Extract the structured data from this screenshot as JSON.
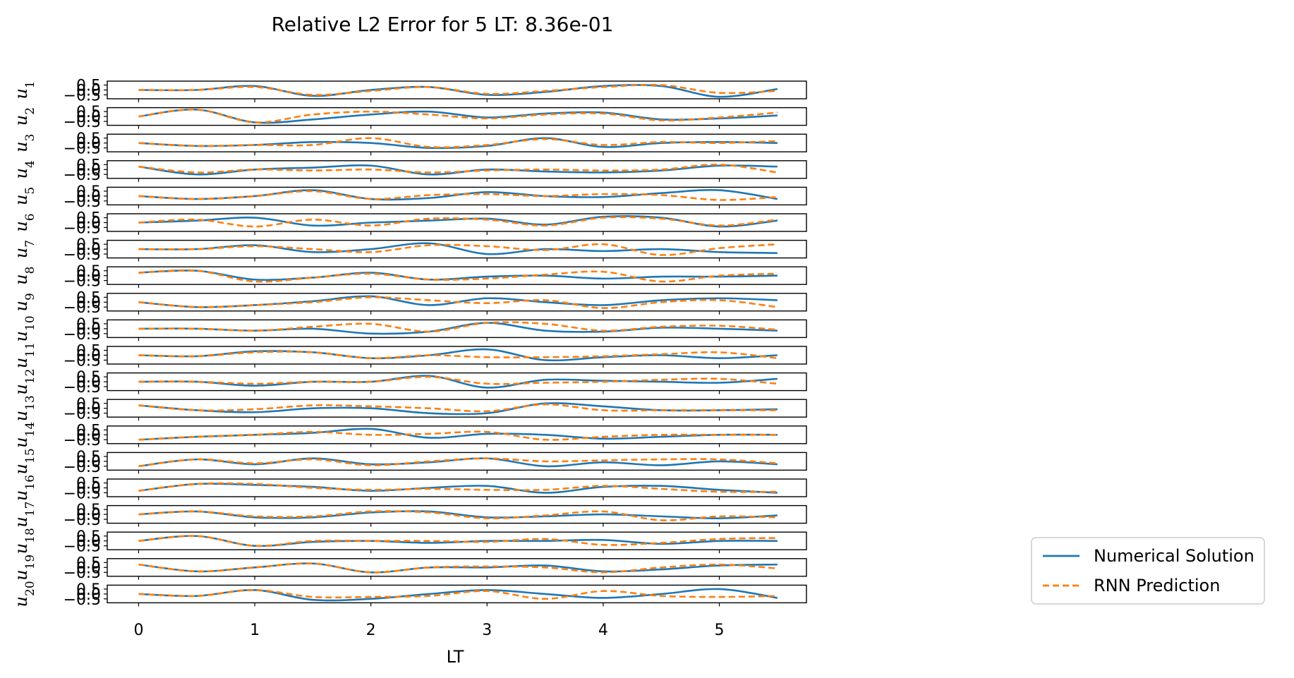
{
  "chart_data": {
    "type": "line",
    "title": "Relative L2 Error for 5 LT: 8.36e-01",
    "xlabel": "LT",
    "x_ticks": [
      "0",
      "1",
      "2",
      "3",
      "4",
      "5"
    ],
    "xlim": [
      -0.27,
      5.75
    ],
    "y_tick_labels": [
      "0.5",
      "0.0",
      "−0.5"
    ],
    "ylim": [
      -0.9,
      0.9
    ],
    "rows": [
      {
        "label": "u_1",
        "sub": "1"
      },
      {
        "label": "u_2",
        "sub": "2"
      },
      {
        "label": "u_3",
        "sub": "3"
      },
      {
        "label": "u_4",
        "sub": "4"
      },
      {
        "label": "u_5",
        "sub": "5"
      },
      {
        "label": "u_6",
        "sub": "6"
      },
      {
        "label": "u_7",
        "sub": "7"
      },
      {
        "label": "u_8",
        "sub": "8"
      },
      {
        "label": "u_9",
        "sub": "9"
      },
      {
        "label": "u_10",
        "sub": "10"
      },
      {
        "label": "u_11",
        "sub": "11"
      },
      {
        "label": "u_12",
        "sub": "12"
      },
      {
        "label": "u_13",
        "sub": "13"
      },
      {
        "label": "u_14",
        "sub": "14"
      },
      {
        "label": "u_15",
        "sub": "15"
      },
      {
        "label": "u_16",
        "sub": "16"
      },
      {
        "label": "u_17",
        "sub": "17"
      },
      {
        "label": "u_18",
        "sub": "18"
      },
      {
        "label": "u_19",
        "sub": "19"
      },
      {
        "label": "u_20",
        "sub": "20"
      }
    ],
    "x": [
      0,
      0.5,
      1,
      1.5,
      2,
      2.5,
      3,
      3.5,
      4,
      4.5,
      5,
      5.5
    ],
    "series": [
      {
        "name": "Numerical Solution",
        "color": "#1f77b4",
        "dash": "solid",
        "values": [
          [
            0.0,
            0.0,
            0.4,
            -0.6,
            0.0,
            0.3,
            -0.5,
            -0.2,
            0.4,
            0.4,
            -0.7,
            0.1
          ],
          [
            0.0,
            0.7,
            -0.6,
            -0.3,
            0.2,
            0.5,
            -0.1,
            0.3,
            0.4,
            -0.3,
            -0.2,
            0.1
          ],
          [
            0.0,
            -0.3,
            -0.2,
            0.1,
            0.0,
            -0.5,
            -0.3,
            0.5,
            -0.4,
            0.0,
            0.1,
            0.0
          ],
          [
            0.3,
            -0.5,
            0.0,
            0.2,
            0.4,
            -0.5,
            0.0,
            -0.2,
            -0.3,
            -0.1,
            0.4,
            0.3
          ],
          [
            0.0,
            -0.3,
            0.0,
            0.6,
            -0.3,
            -0.2,
            0.4,
            0.0,
            -0.1,
            0.3,
            0.6,
            -0.3
          ],
          [
            0.0,
            0.2,
            0.5,
            -0.3,
            0.0,
            0.2,
            0.4,
            -0.2,
            0.6,
            0.5,
            -0.4,
            0.2
          ],
          [
            0.0,
            0.0,
            0.4,
            -0.3,
            0.0,
            0.6,
            -0.5,
            0.0,
            -0.2,
            0.0,
            -0.3,
            -0.4
          ],
          [
            0.3,
            0.5,
            -0.4,
            -0.2,
            0.3,
            -0.4,
            -0.1,
            0.0,
            -0.3,
            -0.1,
            -0.1,
            0.0
          ],
          [
            0.0,
            -0.5,
            -0.3,
            0.1,
            0.6,
            -0.3,
            0.4,
            0.0,
            -0.3,
            0.2,
            0.4,
            0.2
          ],
          [
            0.0,
            0.0,
            -0.2,
            0.0,
            -0.5,
            -0.3,
            0.6,
            -0.2,
            -0.3,
            0.1,
            0.0,
            -0.2
          ],
          [
            0.0,
            -0.1,
            0.4,
            0.3,
            -0.3,
            0.0,
            0.6,
            -0.5,
            -0.2,
            0.0,
            -0.3,
            0.0
          ],
          [
            0.0,
            0.0,
            -0.4,
            0.0,
            0.0,
            0.6,
            -0.6,
            0.2,
            0.1,
            0.0,
            -0.1,
            0.3
          ],
          [
            0.3,
            -0.2,
            -0.4,
            0.0,
            0.0,
            -0.5,
            -0.5,
            0.5,
            0.2,
            -0.2,
            -0.2,
            -0.1
          ],
          [
            -0.5,
            -0.2,
            0.0,
            0.2,
            0.6,
            -0.3,
            0.1,
            0.0,
            -0.4,
            -0.2,
            0.0,
            0.0
          ],
          [
            -0.5,
            0.2,
            -0.3,
            0.3,
            -0.3,
            -0.1,
            0.3,
            -0.5,
            -0.1,
            -0.4,
            0.0,
            -0.3
          ],
          [
            -0.3,
            0.4,
            0.3,
            0.1,
            -0.3,
            0.0,
            0.2,
            -0.5,
            0.1,
            0.2,
            -0.2,
            -0.5
          ],
          [
            0.0,
            0.3,
            -0.3,
            -0.3,
            0.2,
            0.3,
            -0.3,
            -0.2,
            0.0,
            -0.2,
            -0.4,
            -0.1
          ],
          [
            0.0,
            0.5,
            -0.5,
            -0.1,
            0.0,
            -0.2,
            0.0,
            0.0,
            0.1,
            -0.3,
            0.0,
            0.0
          ],
          [
            0.3,
            -0.4,
            0.0,
            0.4,
            -0.5,
            0.0,
            0.0,
            0.2,
            -0.4,
            -0.2,
            0.2,
            0.3
          ],
          [
            0.0,
            -0.2,
            0.4,
            -0.6,
            -0.5,
            0.0,
            0.4,
            0.0,
            -0.4,
            0.0,
            0.5,
            -0.4
          ]
        ]
      },
      {
        "name": "RNN Prediction",
        "color": "#ff7f0e",
        "dash": "dashed",
        "values": [
          [
            0.0,
            0.0,
            0.3,
            -0.5,
            -0.1,
            0.3,
            -0.4,
            -0.1,
            0.3,
            0.5,
            -0.3,
            -0.1
          ],
          [
            0.0,
            0.7,
            -0.6,
            0.2,
            0.5,
            0.2,
            -0.2,
            0.2,
            0.3,
            -0.4,
            -0.1,
            0.4
          ],
          [
            0.0,
            -0.3,
            -0.2,
            -0.2,
            0.5,
            -0.4,
            -0.2,
            0.4,
            -0.2,
            0.1,
            0.0,
            0.2
          ],
          [
            0.3,
            -0.3,
            0.0,
            -0.1,
            0.0,
            -0.3,
            -0.1,
            0.0,
            -0.1,
            0.0,
            0.5,
            -0.3
          ],
          [
            0.0,
            -0.3,
            0.0,
            0.5,
            -0.3,
            0.1,
            0.2,
            0.0,
            0.2,
            0.1,
            -0.4,
            -0.1
          ],
          [
            0.0,
            0.3,
            -0.4,
            0.3,
            -0.3,
            0.4,
            0.3,
            -0.3,
            0.5,
            0.4,
            -0.3,
            0.3
          ],
          [
            0.0,
            0.0,
            0.3,
            0.0,
            -0.3,
            0.4,
            0.3,
            -0.1,
            0.5,
            -0.6,
            0.1,
            0.5
          ],
          [
            0.3,
            0.5,
            -0.6,
            -0.2,
            0.2,
            -0.4,
            -0.3,
            0.1,
            0.4,
            -0.6,
            0.0,
            0.2
          ],
          [
            0.0,
            -0.5,
            -0.3,
            0.0,
            0.5,
            0.2,
            -0.1,
            0.2,
            -0.6,
            0.0,
            0.2,
            -0.5
          ],
          [
            0.0,
            0.0,
            -0.2,
            0.2,
            0.5,
            -0.3,
            0.6,
            0.5,
            -0.2,
            0.2,
            0.3,
            -0.1
          ],
          [
            0.0,
            -0.1,
            0.3,
            0.3,
            -0.3,
            0.0,
            -0.2,
            -0.2,
            -0.1,
            0.1,
            0.3,
            -0.3
          ],
          [
            0.0,
            0.0,
            -0.2,
            0.0,
            0.0,
            0.5,
            -0.2,
            -0.1,
            0.0,
            0.2,
            0.3,
            -0.2
          ],
          [
            0.3,
            -0.2,
            -0.1,
            0.3,
            0.2,
            0.0,
            -0.3,
            0.4,
            -0.2,
            -0.2,
            -0.2,
            -0.2
          ],
          [
            -0.5,
            -0.2,
            0.0,
            0.3,
            0.0,
            0.1,
            0.3,
            -0.5,
            -0.2,
            0.0,
            0.0,
            0.0
          ],
          [
            -0.5,
            0.2,
            -0.2,
            0.2,
            -0.4,
            0.0,
            0.3,
            0.0,
            0.1,
            0.2,
            0.2,
            -0.2
          ],
          [
            -0.3,
            0.4,
            0.4,
            0.0,
            -0.2,
            -0.1,
            -0.2,
            -0.2,
            0.2,
            -0.1,
            -0.4,
            -0.4
          ],
          [
            0.0,
            0.3,
            -0.2,
            -0.2,
            0.3,
            0.2,
            -0.4,
            -0.1,
            0.3,
            -0.6,
            -0.2,
            -0.3
          ],
          [
            0.0,
            0.5,
            -0.5,
            0.0,
            0.0,
            0.0,
            -0.1,
            0.2,
            -0.4,
            -0.2,
            0.2,
            0.3
          ],
          [
            0.3,
            -0.4,
            0.0,
            0.4,
            -0.5,
            0.0,
            0.1,
            0.0,
            -0.5,
            0.0,
            0.3,
            -0.1
          ],
          [
            0.0,
            -0.2,
            0.4,
            -0.3,
            -0.3,
            -0.2,
            0.3,
            -0.5,
            0.3,
            -0.2,
            -0.3,
            -0.2
          ]
        ]
      }
    ],
    "legend": {
      "placement": "outside-right-bottom",
      "entries": [
        "Numerical Solution",
        "RNN Prediction"
      ]
    }
  }
}
